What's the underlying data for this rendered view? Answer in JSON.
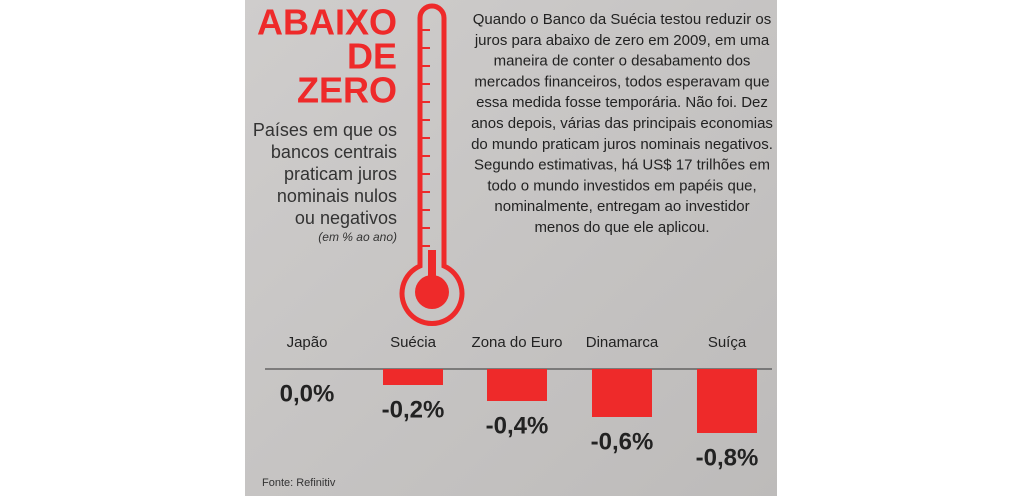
{
  "chart_data": {
    "type": "bar",
    "title_lines": [
      "ABAIXO",
      "DE",
      "ZERO"
    ],
    "subtitle_lines": [
      "Países em que os",
      "bancos centrais",
      "praticam juros",
      "nominais nulos",
      "ou negativos"
    ],
    "unit_note": "(em % ao ano)",
    "body_lines": [
      "Quando o Banco da Suécia testou reduzir os",
      "juros para abaixo de zero em 2009, em uma",
      "maneira de conter o desabamento dos",
      "mercados financeiros, todos esperavam que",
      "essa medida fosse temporária. Não foi. Dez",
      "anos depois, várias das principais economias",
      "do mundo praticam juros nominais negativos.",
      "Segundo estimativas, há US$ 17 trilhões em",
      "todo o mundo investidos em papéis que,",
      "nominalmente, entregam ao investidor",
      "menos do que ele aplicou."
    ],
    "categories": [
      "Japão",
      "Suécia",
      "Zona do Euro",
      "Dinamarca",
      "Suíça"
    ],
    "values": [
      0.0,
      -0.2,
      -0.4,
      -0.6,
      -0.8
    ],
    "value_labels": [
      "0,0%",
      "-0,2%",
      "-0,4%",
      "-0,6%",
      "-0,8%"
    ],
    "color": "#ee2a2a",
    "source": "Fonte: Refinitiv"
  }
}
